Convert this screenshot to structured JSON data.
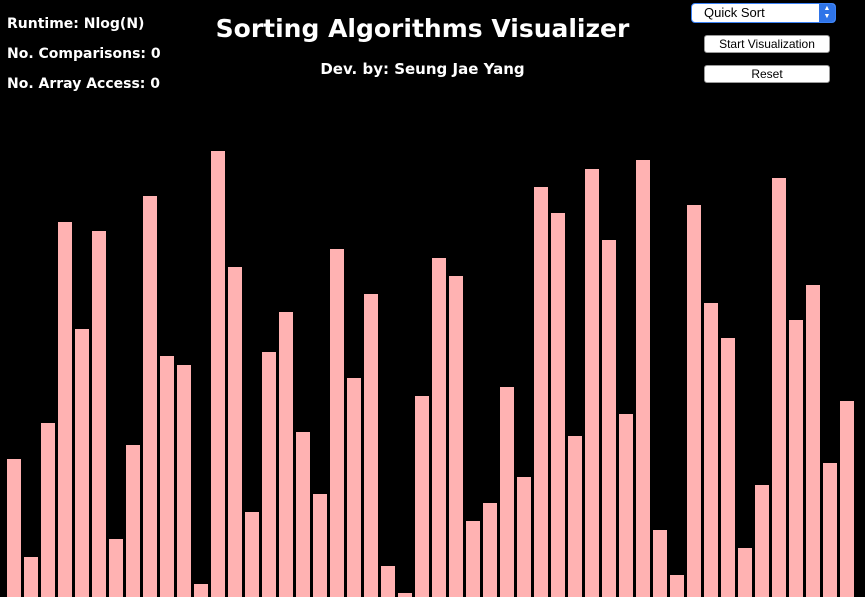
{
  "stats": {
    "runtime": "Runtime: Nlog(N)",
    "comparisons": "No. Comparisons: 0",
    "array_access": "No. Array Access: 0"
  },
  "header": {
    "title": "Sorting Algorithms Visualizer",
    "subtitle": "Dev. by: Seung Jae Yang"
  },
  "controls": {
    "algorithm_selected": "Quick Sort",
    "start_label": "Start Visualization",
    "reset_label": "Reset"
  },
  "colors": {
    "bar": "#ffb2b2",
    "background": "#000000"
  },
  "chart_data": {
    "type": "bar",
    "max": 100,
    "values": [
      31,
      9,
      39,
      84,
      60,
      82,
      13,
      34,
      90,
      54,
      52,
      3,
      100,
      74,
      19,
      55,
      64,
      37,
      23,
      78,
      49,
      68,
      7,
      1,
      45,
      76,
      72,
      17,
      21,
      47,
      27,
      92,
      86,
      36,
      96,
      80,
      41,
      98,
      15,
      5,
      88,
      66,
      58,
      11,
      25,
      94,
      62,
      70,
      30,
      44
    ]
  }
}
